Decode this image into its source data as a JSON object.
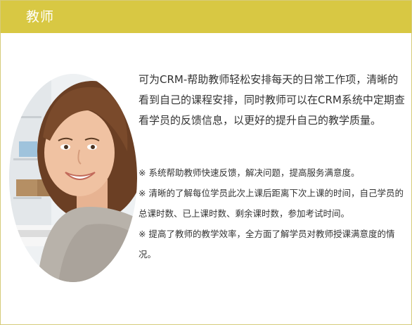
{
  "header": {
    "title": "教师",
    "bar_color": "#d8c843",
    "title_color": "#ffffff"
  },
  "photo": {
    "icon": "teacher-portrait-photo"
  },
  "main": {
    "intro": "可为CRM-帮助教师轻松安排每天的日常工作项，清晰的看到自己的课程安排，同时教师可以在CRM系统中定期查看学员的反馈信息，以更好的提升自己的教学质量。",
    "notes": [
      "※ 系统帮助教师快速反馈，解决问题，提高服务满意度。",
      "※ 清晰的了解每位学员此次上课后距离下次上课的时间，自己学员的总课时数、已上课时数、剩余课时数，参加考试时间。",
      "※ 提高了教师的教学效率，全方面了解学员对教师授课满意度的情况。"
    ]
  }
}
